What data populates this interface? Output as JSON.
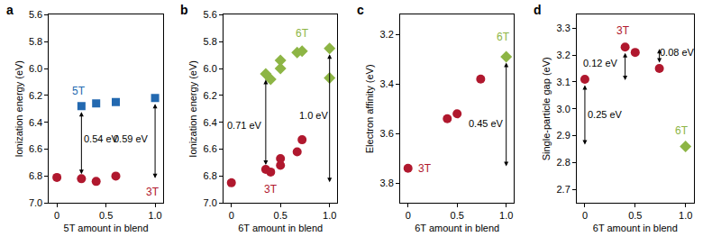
{
  "chart_data": [
    {
      "type": "scatter",
      "title": "a",
      "xlabel": "5T amount in blend",
      "ylabel": "Ionization energy (eV)",
      "xlim": [
        -0.08,
        1.08
      ],
      "xticks": [
        0,
        0.5,
        {
          "value": 1,
          "label": "1.0"
        }
      ],
      "ylim": [
        7.0,
        5.6
      ],
      "yticks": [
        5.6,
        5.8,
        {
          "value": 6,
          "label": "6.0"
        },
        6.2,
        6.4,
        6.6,
        6.8,
        {
          "value": 7,
          "label": "7.0"
        }
      ],
      "series": [
        {
          "name": "5T",
          "color": "#2369b0",
          "marker": "square",
          "x": [
            0.25,
            0.4,
            0.6,
            1.0
          ],
          "values": [
            6.28,
            6.26,
            6.25,
            6.22
          ],
          "label_x": 0.22,
          "label_y": 6.17
        },
        {
          "name": "3T",
          "color": "#b0182e",
          "marker": "circle",
          "x": [
            0,
            0.25,
            0.4,
            0.6
          ],
          "values": [
            6.81,
            6.82,
            6.84,
            6.8
          ],
          "label_x": 0.98,
          "label_y": 6.92
        }
      ],
      "annotations": [
        {
          "text": "0.54 eV",
          "x": 0.25,
          "y_from": 6.28,
          "y_to": 6.82,
          "text_x": 0.45,
          "text_y": 6.52
        },
        {
          "text": "0.59 eV",
          "x": 1.0,
          "y_from": 6.22,
          "y_to": 6.85,
          "text_x": 0.76,
          "text_y": 6.52
        }
      ]
    },
    {
      "type": "scatter",
      "title": "b",
      "xlabel": "6T amount in blend",
      "ylabel": "Ionization energy (eV)",
      "xlim": [
        -0.08,
        1.08
      ],
      "xticks": [
        0,
        0.5,
        {
          "value": 1,
          "label": "1.0"
        }
      ],
      "ylim": [
        7.0,
        5.6
      ],
      "yticks": [
        5.6,
        5.8,
        {
          "value": 6,
          "label": "6.0"
        },
        6.2,
        6.4,
        6.6,
        6.8,
        {
          "value": 7,
          "label": "7.0"
        }
      ],
      "series": [
        {
          "name": "6T",
          "color": "#8db545",
          "marker": "diamond",
          "x": [
            0.35,
            0.4,
            0.5,
            0.5,
            0.67,
            0.72,
            1.0,
            1.0
          ],
          "values": [
            6.04,
            6.08,
            6.0,
            5.94,
            5.88,
            5.87,
            5.85,
            6.07
          ],
          "label_x": 0.72,
          "label_y": 5.74
        },
        {
          "name": "3T",
          "color": "#b0182e",
          "marker": "circle",
          "x": [
            0,
            0.35,
            0.4,
            0.5,
            0.5,
            0.67,
            0.72
          ],
          "values": [
            6.85,
            6.75,
            6.77,
            6.72,
            6.67,
            6.62,
            6.53
          ],
          "label_x": 0.4,
          "label_y": 6.9
        }
      ],
      "annotations": [
        {
          "text": "0.71 eV",
          "x": 0.35,
          "y_from": 6.04,
          "y_to": 6.75,
          "text_x": 0.14,
          "text_y": 6.42
        },
        {
          "text": "1.0 eV",
          "x": 1.0,
          "y_from": 5.85,
          "y_to": 6.88,
          "text_x": 0.84,
          "text_y": 6.35
        }
      ]
    },
    {
      "type": "scatter",
      "title": "c",
      "xlabel": "6T amount in blend",
      "ylabel": "Electron affinity (eV)",
      "xlim": [
        -0.08,
        1.08
      ],
      "xticks": [
        0,
        0.5,
        {
          "value": 1,
          "label": "1.0"
        }
      ],
      "ylim": [
        3.88,
        3.12
      ],
      "yticks": [
        3.2,
        3.4,
        3.6,
        3.8
      ],
      "series": [
        {
          "name": "6T",
          "color": "#8db545",
          "marker": "diamond",
          "x": [
            1.0
          ],
          "values": [
            3.29
          ],
          "label_x": 0.97,
          "label_y": 3.21
        },
        {
          "name": "3T",
          "color": "#b0182e",
          "marker": "circle",
          "x": [
            0,
            0.4,
            0.5,
            0.74
          ],
          "values": [
            3.74,
            3.54,
            3.52,
            3.38
          ],
          "label_x": 0.17,
          "label_y": 3.74
        }
      ],
      "annotations": [
        {
          "text": "0.45 eV",
          "x": 1.0,
          "y_from": 3.29,
          "y_to": 3.75,
          "text_x": 0.8,
          "text_y": 3.56
        }
      ]
    },
    {
      "type": "scatter",
      "title": "d",
      "xlabel": "6T amount in blend",
      "ylabel": "Single-particle gap (eV)",
      "xlim": [
        -0.08,
        1.08
      ],
      "xticks": [
        0,
        0.5,
        {
          "value": 1,
          "label": "1.0"
        }
      ],
      "ylim": [
        2.65,
        3.35
      ],
      "yticks": [
        2.7,
        2.8,
        2.9,
        {
          "value": 3,
          "label": "3.0"
        },
        3.1,
        3.2,
        3.3
      ],
      "series": [
        {
          "name": "3T",
          "color": "#b0182e",
          "marker": "circle",
          "x": [
            0,
            0.4,
            0.5,
            0.74
          ],
          "values": [
            3.11,
            3.23,
            3.21,
            3.15
          ],
          "label_x": 0.38,
          "label_y": 3.29
        },
        {
          "name": "6T",
          "color": "#8db545",
          "marker": "diamond",
          "x": [
            1.0
          ],
          "values": [
            2.86
          ],
          "label_x": 0.96,
          "label_y": 2.92
        }
      ],
      "annotations": [
        {
          "text": "0.25 eV",
          "x": 0,
          "y_from": 3.11,
          "y_to": 2.85,
          "text_x": 0.2,
          "text_y": 2.98
        },
        {
          "text": "0.12 eV",
          "x": 0.4,
          "y_from": 3.23,
          "y_to": 3.09,
          "text_x": 0.16,
          "text_y": 3.17
        },
        {
          "text": "0.08 eV",
          "x": 0.74,
          "y_from": 3.15,
          "y_to": 3.24,
          "text_x": 0.92,
          "text_y": 3.21
        }
      ]
    }
  ]
}
